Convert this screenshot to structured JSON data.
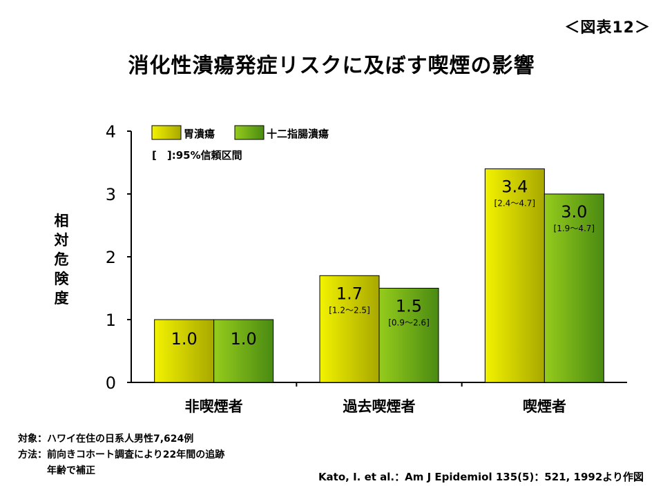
{
  "figure_label": "＜図表12＞",
  "title": "消化性潰瘍発症リスクに及ぼす喫煙の影響",
  "chart_data": {
    "type": "bar",
    "ylabel": "相対危険度",
    "ylim": [
      0,
      4
    ],
    "yticks": [
      0,
      1,
      2,
      3,
      4
    ],
    "grid": false,
    "legend_position": "top-left",
    "legend_note": "[　]:95%信頼区間",
    "categories": [
      "非喫煙者",
      "過去喫煙者",
      "喫煙者"
    ],
    "series": [
      {
        "name": "胃潰瘍",
        "values": [
          1.0,
          1.7,
          3.4
        ],
        "labels": [
          "1.0",
          "1.7",
          "3.4"
        ],
        "ci": [
          "",
          "[1.2～2.5]",
          "[2.4～4.7]"
        ],
        "color_top": "#f2f200",
        "color_bottom": "#a8a800"
      },
      {
        "name": "十二指腸潰瘍",
        "values": [
          1.0,
          1.5,
          3.0
        ],
        "labels": [
          "1.0",
          "1.5",
          "3.0"
        ],
        "ci": [
          "",
          "[0.9～2.6]",
          "[1.9～4.7]"
        ],
        "color_top": "#95cc1c",
        "color_bottom": "#4a8a12"
      }
    ]
  },
  "notes": {
    "subject": "対象：ハワイ在住の日系人男性7,624例",
    "method": "方法：前向きコホート調査により22年間の追跡",
    "adjust": "年齢で補正"
  },
  "citation": "Kato, I. et al.：Am J Epidemiol 135(5)：521, 1992より作図"
}
